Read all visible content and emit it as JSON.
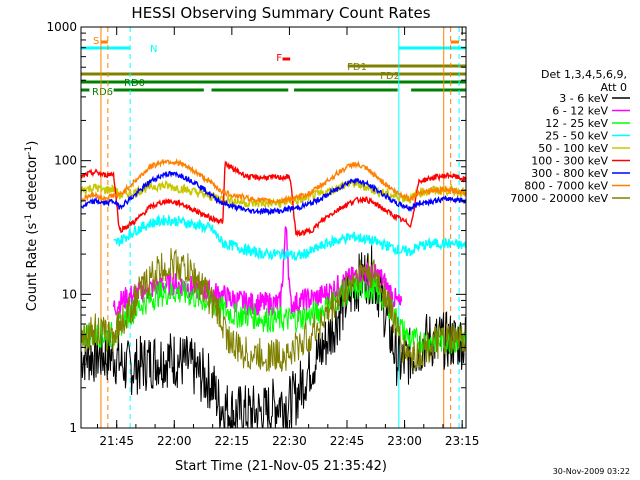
{
  "chart_data": {
    "type": "line",
    "title": "HESSI Observing Summary Count Rates",
    "xlabel": "Start Time (21-Nov-05 21:35:42)",
    "ylabel": "Count Rate (s⁻¹ detector⁻¹)",
    "ylabel_parts": {
      "main": "Count Rate (s",
      "sup1": "-1",
      "mid": " detector",
      "sup2": "-1",
      "end": ")"
    },
    "yscale": "log",
    "ylim": [
      1,
      1000
    ],
    "xlim": [
      0,
      100.3
    ],
    "x_units": "minutes after 21:35:42",
    "xticks": [
      {
        "x": 9.3,
        "label": "21:45"
      },
      {
        "x": 24.3,
        "label": "22:00"
      },
      {
        "x": 39.3,
        "label": "22:15"
      },
      {
        "x": 54.3,
        "label": "22:30"
      },
      {
        "x": 69.3,
        "label": "22:45"
      },
      {
        "x": 84.3,
        "label": "23:00"
      },
      {
        "x": 99.3,
        "label": "23:15"
      }
    ],
    "yticks": [
      {
        "y": 1,
        "label": "1"
      },
      {
        "y": 10,
        "label": "10"
      },
      {
        "y": 100,
        "label": "100"
      },
      {
        "y": 1000,
        "label": "1000"
      }
    ],
    "legend": {
      "title": [
        "Det 1,3,4,5,6,9,",
        "Att 0"
      ],
      "placement": "right"
    },
    "series": [
      {
        "name": "3 - 6 keV",
        "color": "#000000",
        "x": [
          0,
          3,
          6,
          8.5,
          12,
          16,
          20,
          24,
          28,
          31,
          34,
          36,
          40,
          44,
          48,
          52,
          54,
          56,
          58,
          60,
          62,
          64,
          66,
          68,
          70,
          72,
          74,
          76,
          78,
          80,
          81,
          82,
          83.5,
          86,
          88,
          90,
          92,
          95,
          98,
          100.3
        ],
        "y": [
          3.5,
          3.5,
          3.5,
          3.5,
          2.8,
          3,
          3.3,
          3.3,
          3,
          2.5,
          2.2,
          1.5,
          1.3,
          1.3,
          1.3,
          1.6,
          1.5,
          1.7,
          2.3,
          3,
          3.5,
          4.5,
          6,
          8,
          10,
          12,
          14,
          14,
          10,
          6,
          4.5,
          3.5,
          3,
          3.5,
          4,
          4.5,
          4.5,
          4.5,
          4.5,
          4.5
        ]
      },
      {
        "name": "6 - 12 keV",
        "color": "#ff00ff",
        "x": [
          8.5,
          12,
          16,
          20,
          24,
          28,
          32,
          36,
          40,
          44,
          48,
          52,
          53.5,
          54.5,
          55.5,
          58,
          62,
          66,
          70,
          74,
          78,
          80,
          82,
          83.5
        ],
        "y": [
          8,
          9.5,
          10.5,
          11.5,
          12,
          11.5,
          10.5,
          10,
          9,
          8.5,
          8.5,
          8.5,
          35,
          8.5,
          8.5,
          9,
          9.5,
          11,
          13,
          14.5,
          13.5,
          11,
          9,
          8
        ]
      },
      {
        "name": "12 - 25 keV",
        "color": "#00ff00",
        "x": [
          0,
          4,
          8.5,
          12,
          16,
          20,
          24,
          28,
          32,
          36,
          40,
          44,
          48,
          52,
          56,
          60,
          64,
          68,
          72,
          76,
          80,
          83.5,
          86,
          90,
          94,
          98,
          100.3
        ],
        "y": [
          5,
          5,
          5,
          7,
          8.5,
          10,
          10.5,
          10,
          9,
          8,
          7,
          7,
          6.5,
          6.5,
          6.5,
          7,
          8,
          10,
          11,
          11,
          8.5,
          5.5,
          4.5,
          4.5,
          4.5,
          4.5,
          4.5
        ]
      },
      {
        "name": "25 - 50 keV",
        "color": "#00ffff",
        "x": [
          8.5,
          10,
          14,
          18,
          22,
          26,
          30,
          34,
          37,
          40,
          44,
          48,
          52,
          54.5,
          56,
          60,
          64,
          68,
          71,
          74,
          78,
          82,
          83.5,
          86,
          88,
          92,
          96,
          100.3
        ],
        "y": [
          24,
          25,
          30,
          34,
          36,
          35,
          33,
          31,
          24,
          23,
          21,
          20,
          20,
          20,
          19,
          21,
          24,
          26,
          27,
          26,
          24,
          22,
          21,
          21,
          23,
          24,
          24,
          23
        ]
      },
      {
        "name": "50 - 100 keV",
        "color": "#c8c800",
        "x": [
          0,
          2,
          4,
          6,
          8.5,
          10,
          14,
          18,
          22,
          26,
          30,
          34,
          37,
          40,
          44,
          48,
          52,
          54.5,
          56,
          60,
          64,
          68,
          71,
          74,
          78,
          82,
          86,
          88,
          92,
          96,
          100.3
        ],
        "y": [
          60,
          62,
          63,
          60,
          62,
          55,
          58,
          64,
          65,
          62,
          58,
          54,
          52,
          50,
          48,
          48,
          48,
          50,
          50,
          54,
          58,
          65,
          68,
          64,
          58,
          54,
          52,
          58,
          60,
          60,
          58
        ]
      },
      {
        "name": "100 - 300 keV",
        "color": "#ff0000",
        "x": [
          0,
          2,
          4,
          6,
          8.5,
          10,
          14,
          18,
          22,
          26,
          30,
          34,
          37,
          37.5,
          40,
          44,
          48,
          52,
          54.5,
          56,
          60,
          64,
          68,
          71,
          74,
          78,
          82,
          86,
          88,
          92,
          96,
          100.3
        ],
        "y": [
          75,
          80,
          82,
          78,
          80,
          30,
          35,
          45,
          50,
          48,
          42,
          37,
          35,
          95,
          85,
          75,
          75,
          75,
          75,
          28,
          30,
          38,
          45,
          50,
          52,
          45,
          38,
          33,
          70,
          75,
          78,
          72
        ]
      },
      {
        "name": "300 - 800 keV",
        "color": "#0000ff",
        "x": [
          0,
          2,
          4,
          6,
          8.5,
          10,
          14,
          18,
          22,
          26,
          30,
          34,
          37,
          40,
          44,
          48,
          52,
          54.5,
          56,
          60,
          64,
          68,
          71,
          74,
          78,
          82,
          86,
          88,
          92,
          96,
          100.3
        ],
        "y": [
          45,
          48,
          50,
          48,
          50,
          45,
          55,
          70,
          80,
          78,
          68,
          55,
          48,
          45,
          42,
          42,
          42,
          44,
          44,
          48,
          55,
          65,
          72,
          68,
          58,
          48,
          44,
          48,
          50,
          52,
          50
        ]
      },
      {
        "name": "800 - 7000 keV",
        "color": "#ff8000",
        "x": [
          0,
          2,
          4,
          6,
          8.5,
          10,
          14,
          18,
          22,
          26,
          30,
          34,
          37,
          40,
          44,
          48,
          52,
          54.5,
          56,
          60,
          64,
          68,
          71,
          74,
          78,
          82,
          86,
          88,
          92,
          96,
          100.3
        ],
        "y": [
          50,
          55,
          55,
          52,
          55,
          55,
          70,
          90,
          100,
          95,
          82,
          68,
          58,
          55,
          52,
          50,
          50,
          52,
          52,
          58,
          70,
          85,
          95,
          88,
          72,
          58,
          52,
          58,
          60,
          60,
          58
        ]
      },
      {
        "name": "7000 - 20000 keV",
        "color": "#808000",
        "x": [
          0,
          2,
          4,
          6,
          8.5,
          10,
          12,
          14,
          16,
          18,
          20,
          22,
          24,
          26,
          28,
          30,
          32,
          34,
          36,
          38,
          40,
          44,
          48,
          52,
          54.5,
          56,
          60,
          64,
          68,
          72,
          74,
          76,
          78,
          80,
          82,
          83.5,
          86,
          88,
          90,
          94,
          98,
          100.3
        ],
        "y": [
          5,
          5,
          5.5,
          5,
          5,
          6,
          7,
          9,
          11,
          13,
          15,
          16,
          17,
          16,
          15,
          13,
          11,
          9,
          7,
          5,
          4,
          3.5,
          3.5,
          3.5,
          3.5,
          4,
          5,
          7,
          10,
          14,
          15,
          14,
          12,
          9,
          6,
          4,
          3.5,
          3.5,
          4,
          4.5,
          4.5,
          5
        ]
      }
    ],
    "vlines": [
      {
        "x": 0,
        "color": "#00ffff",
        "style": "solid"
      },
      {
        "x": 5.2,
        "color": "#ff8000",
        "style": "solid"
      },
      {
        "x": 7.0,
        "color": "#ff8000",
        "style": "dashed"
      },
      {
        "x": 12.8,
        "color": "#00ffff",
        "style": "dashed"
      },
      {
        "x": 82.8,
        "color": "#00ffff",
        "style": "solid"
      },
      {
        "x": 94.5,
        "color": "#ff8000",
        "style": "solid"
      },
      {
        "x": 96.3,
        "color": "#ff8000",
        "style": "dashed"
      },
      {
        "x": 98.5,
        "color": "#00ffff",
        "style": "dashed"
      }
    ],
    "flag_bars": [
      {
        "label": "S",
        "color": "#ff8000",
        "segments": [
          [
            5.2,
            7.0
          ],
          [
            96.3,
            98.5
          ]
        ]
      },
      {
        "label": "N",
        "color": "#00ffff",
        "segments": [
          [
            0,
            12.8
          ],
          [
            82.8,
            100.3
          ]
        ]
      },
      {
        "label": "F",
        "color": "#ff0000",
        "segments": [
          [
            52.5,
            54.5
          ]
        ]
      },
      {
        "label": "FD1",
        "color": "#808000",
        "segments": [
          [
            69.5,
            100.3
          ]
        ]
      },
      {
        "label": "FD2",
        "color": "#808000",
        "segments": [
          [
            0,
            100.3
          ]
        ]
      },
      {
        "label": "RD0",
        "color": "#008000",
        "segments": [
          [
            0,
            100.3
          ]
        ]
      },
      {
        "label": "RD6",
        "color": "#008000",
        "segments": [
          [
            0,
            2.2
          ],
          [
            8.5,
            32
          ],
          [
            34,
            54
          ],
          [
            55.5,
            82.5
          ],
          [
            86,
            100.3
          ]
        ]
      }
    ]
  },
  "footer": {
    "timestamp": "30-Nov-2009 03:22"
  }
}
